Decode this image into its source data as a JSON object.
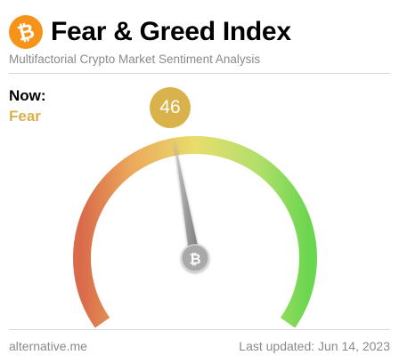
{
  "header": {
    "logo_icon": "bitcoin-icon",
    "logo_glyph": "₿",
    "title": "Fear & Greed Index",
    "subtitle": "Multifactorial Crypto Market Sentiment Analysis"
  },
  "now": {
    "label": "Now:",
    "classification": "Fear",
    "value": "46",
    "value_min": 0,
    "value_max": 100,
    "accent_color": "#d9b24c"
  },
  "gauge": {
    "center_icon": "bitcoin-icon",
    "center_glyph": "₿",
    "colors": {
      "extreme_fear": "#d96b4a",
      "fear": "#eba95b",
      "neutral": "#e8dd6c",
      "greed": "#b2df6b",
      "extreme_greed": "#6bd64f"
    }
  },
  "footer": {
    "source": "alternative.me",
    "updated": "Last updated: Jun 14, 2023"
  }
}
